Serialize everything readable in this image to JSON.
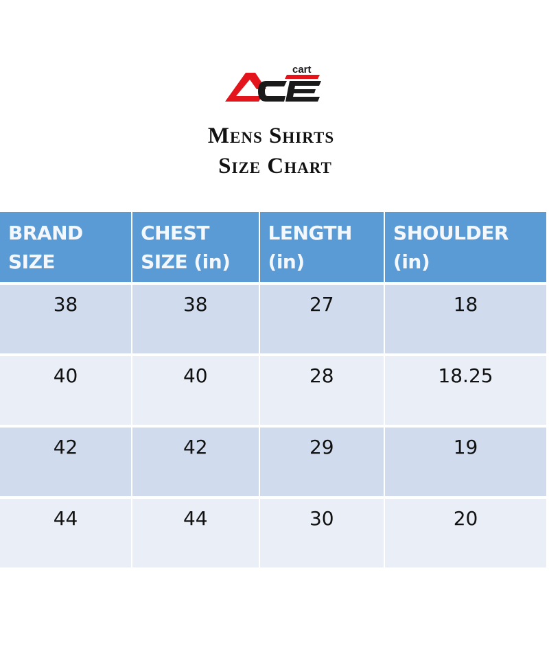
{
  "brand": {
    "logo_text": "ACE",
    "logo_subtext": "cart",
    "colors": {
      "red": "#e3141b",
      "black": "#1a1a1a"
    }
  },
  "title": {
    "line1": "Mens Shirts",
    "line2": "Size Chart"
  },
  "table": {
    "header_color": "#5b9bd5",
    "row_colors": [
      "#d0dcee",
      "#e9eef7"
    ],
    "columns": [
      {
        "line1": "BRAND",
        "line2": "SIZE"
      },
      {
        "line1": "CHEST",
        "line2": "SIZE (in)"
      },
      {
        "line1": "LENGTH",
        "line2": "(in)"
      },
      {
        "line1": "SHOULDER",
        "line2": "(in)"
      }
    ],
    "rows": [
      [
        "38",
        "38",
        "27",
        "18"
      ],
      [
        "40",
        "40",
        "28",
        "18.25"
      ],
      [
        "42",
        "42",
        "29",
        "19"
      ],
      [
        "44",
        "44",
        "30",
        "20"
      ]
    ]
  }
}
